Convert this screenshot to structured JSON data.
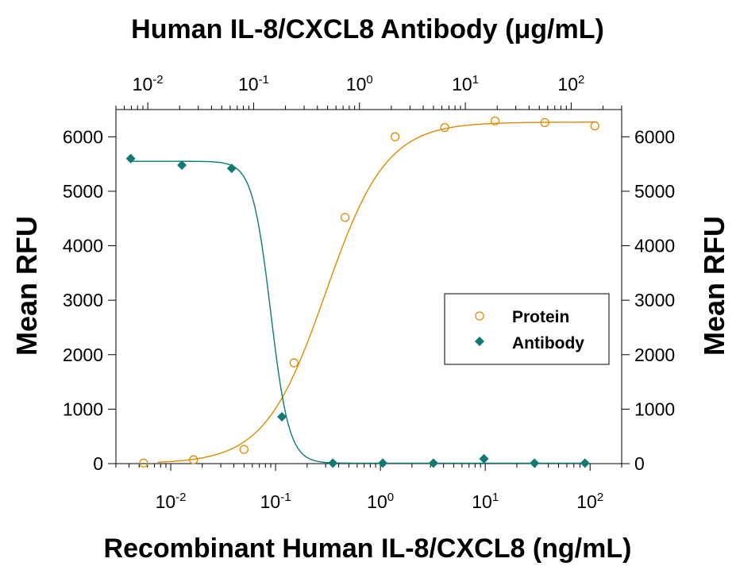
{
  "chart_data": {
    "type": "scatter",
    "title": "Human IL-8/CXCL8 Antibody (μg/mL)",
    "xlabel": "Recombinant Human IL-8/CXCL8 (ng/mL)",
    "ylabel": "Mean RFU",
    "ylabel_right": "Mean RFU",
    "x_scale": "log",
    "xlim": [
      0.003,
      200
    ],
    "ylim": [
      0,
      6500
    ],
    "top_scale": "log",
    "top_xlim": [
      0.005,
      300
    ],
    "x_ticks": [
      {
        "value": 0.01,
        "base": "10",
        "exp": "-2"
      },
      {
        "value": 0.1,
        "base": "10",
        "exp": "-1"
      },
      {
        "value": 1,
        "base": "10",
        "exp": "0"
      },
      {
        "value": 10,
        "base": "10",
        "exp": "1"
      },
      {
        "value": 100,
        "base": "10",
        "exp": "2"
      }
    ],
    "top_ticks": [
      {
        "value": 0.01,
        "base": "10",
        "exp": "-2"
      },
      {
        "value": 0.1,
        "base": "10",
        "exp": "-1"
      },
      {
        "value": 1,
        "base": "10",
        "exp": "0"
      },
      {
        "value": 10,
        "base": "10",
        "exp": "1"
      },
      {
        "value": 100,
        "base": "10",
        "exp": "2"
      }
    ],
    "y_ticks": [
      "0",
      "1000",
      "2000",
      "3000",
      "4000",
      "5000",
      "6000"
    ],
    "legend": {
      "position": "center-right"
    },
    "series": [
      {
        "name": "Protein",
        "axis": "bottom",
        "marker": "open-circle",
        "color": "#E08A00",
        "x": [
          0.0055,
          0.0165,
          0.05,
          0.15,
          0.46,
          1.38,
          4.1,
          12.4,
          37,
          111
        ],
        "y": [
          10,
          70,
          260,
          1850,
          4520,
          6000,
          6170,
          6290,
          6260,
          6200
        ],
        "fit": {
          "model": "4PL",
          "bottom": 0,
          "top": 6270,
          "ec50": 0.3,
          "hill": 1.5
        }
      },
      {
        "name": "Antibody",
        "axis": "top",
        "marker": "filled-diamond",
        "color": "#0E7A73",
        "x": [
          0.0069,
          0.021,
          0.062,
          0.185,
          0.56,
          1.66,
          5,
          15,
          45,
          135
        ],
        "y": [
          5600,
          5480,
          5420,
          860,
          10,
          10,
          10,
          90,
          10,
          10
        ],
        "fit": {
          "model": "4PL",
          "bottom": 8,
          "top": 5550,
          "ic50": 0.145,
          "hill": 5
        }
      }
    ]
  }
}
